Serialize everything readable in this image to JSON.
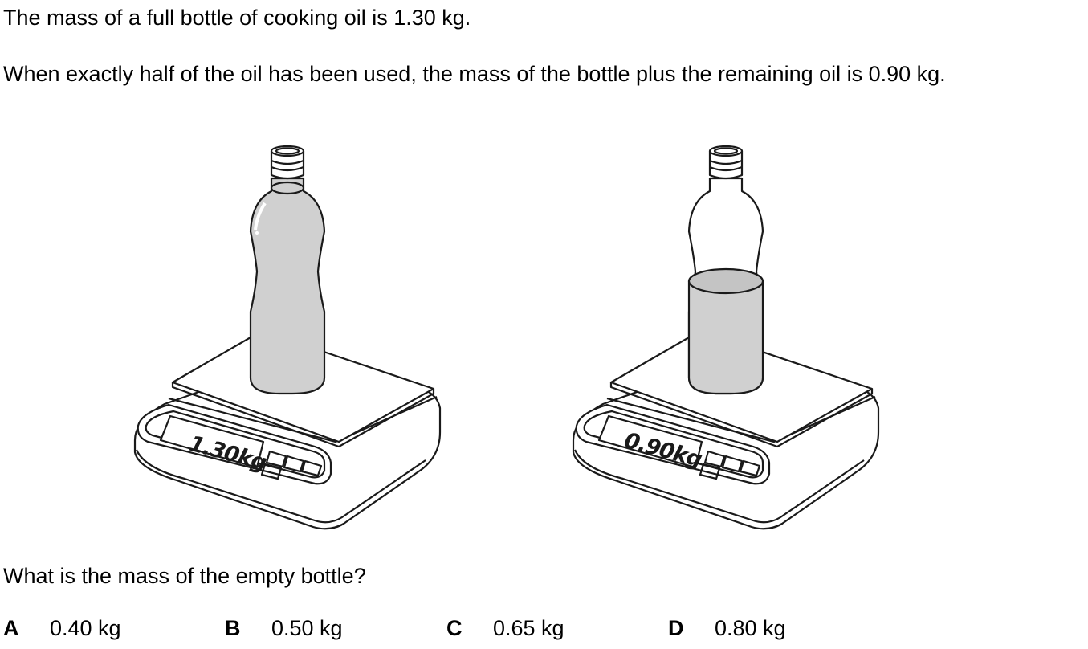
{
  "question": {
    "line1": "The mass of a full bottle of cooking oil is 1.30 kg.",
    "line2": "When exactly half of the oil has been used, the mass of the bottle plus the remaining oil is 0.90 kg.",
    "prompt": "What is the mass of the empty bottle?"
  },
  "figures": {
    "left": {
      "display": "1.30kg",
      "oil_fill": "full"
    },
    "right": {
      "display": "0.90kg",
      "oil_fill": "half"
    }
  },
  "options": [
    {
      "letter": "A",
      "value": "0.40 kg"
    },
    {
      "letter": "B",
      "value": "0.50 kg"
    },
    {
      "letter": "C",
      "value": "0.65 kg"
    },
    {
      "letter": "D",
      "value": "0.80 kg"
    }
  ],
  "colors": {
    "oil": "#d0d0d0",
    "line": "#1a1a1a"
  }
}
